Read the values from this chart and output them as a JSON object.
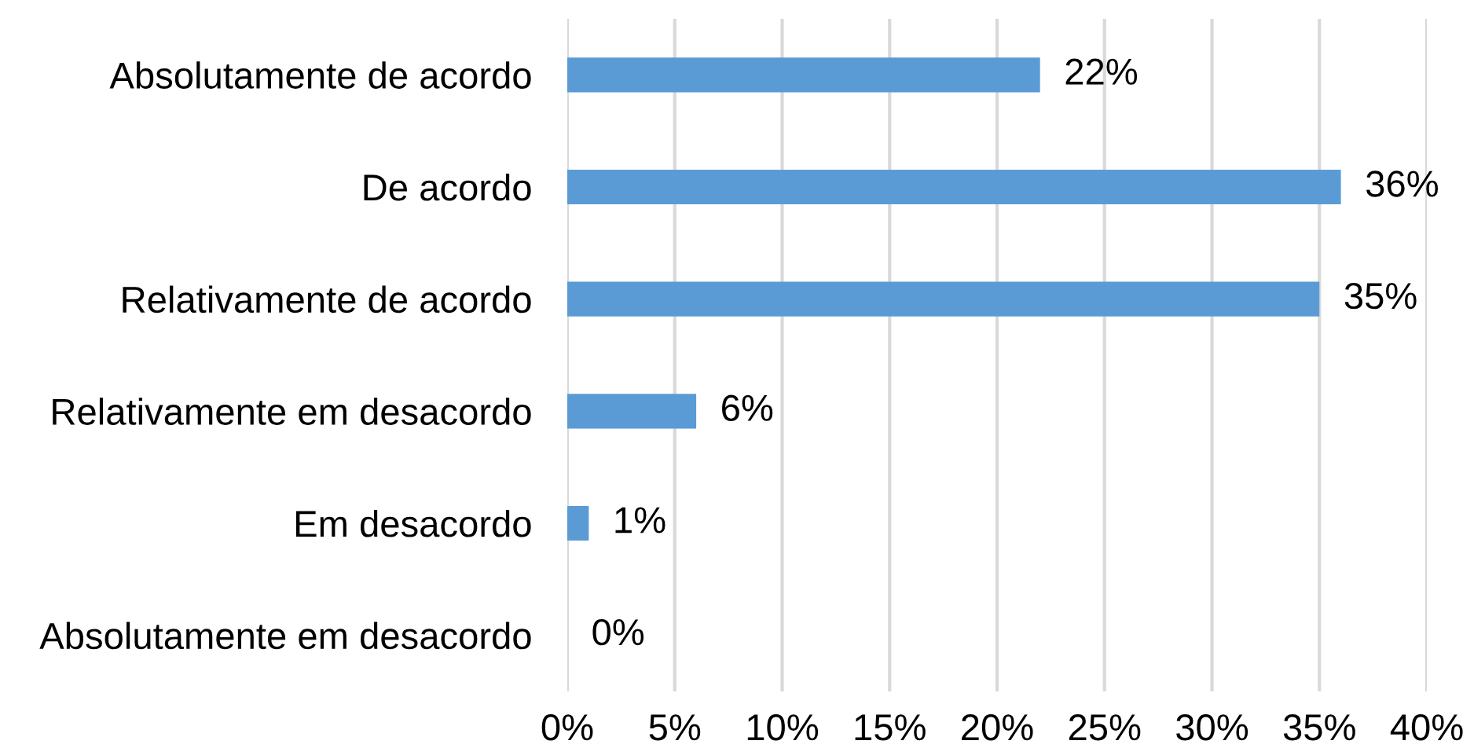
{
  "chart_data": {
    "type": "bar",
    "orientation": "horizontal",
    "categories": [
      "Absolutamente de acordo",
      "De acordo",
      "Relativamente de acordo",
      "Relativamente em desacordo",
      "Em desacordo",
      "Absolutamente em desacordo"
    ],
    "values": [
      22,
      36,
      35,
      6,
      1,
      0
    ],
    "value_labels": [
      "22%",
      "36%",
      "35%",
      "6%",
      "1%",
      "0%"
    ],
    "color": "#5b9bd5",
    "xlim": [
      0,
      40
    ],
    "xticks": [
      {
        "value": 0,
        "label": "0%"
      },
      {
        "value": 5,
        "label": "5%"
      },
      {
        "value": 10,
        "label": "10%"
      },
      {
        "value": 15,
        "label": "15%"
      },
      {
        "value": 20,
        "label": "20%"
      },
      {
        "value": 25,
        "label": "25%"
      },
      {
        "value": 30,
        "label": "30%"
      },
      {
        "value": 35,
        "label": "35%"
      },
      {
        "value": 40,
        "label": "40%"
      }
    ],
    "grid": "x"
  }
}
